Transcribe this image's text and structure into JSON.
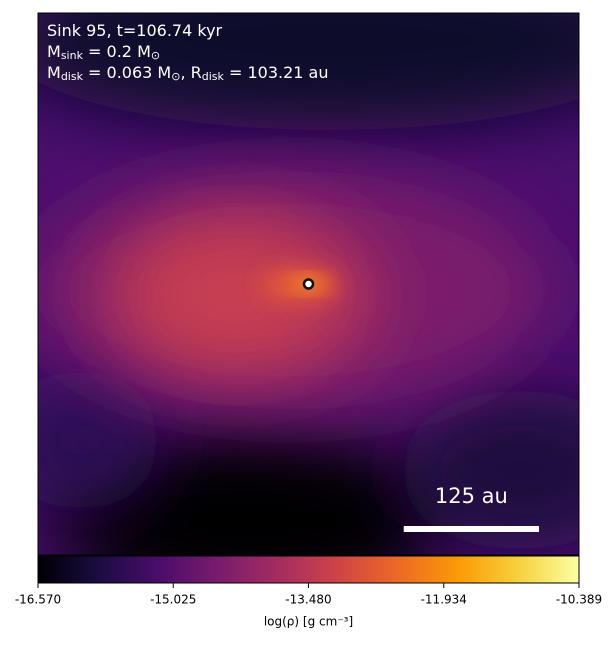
{
  "chart_data": {
    "type": "heatmap",
    "annotations": [
      [
        {
          "text": "Sink 95, t=106.74 kyr"
        }
      ],
      [
        {
          "text": "M"
        },
        {
          "text": "sink",
          "sub": true
        },
        {
          "text": " = 0.2 M"
        },
        {
          "text": "⊙",
          "sub": true
        }
      ],
      [
        {
          "text": "M"
        },
        {
          "text": "disk",
          "sub": true
        },
        {
          "text": " = 0.063 M"
        },
        {
          "text": "⊙",
          "sub": true
        },
        {
          "text": ", R"
        },
        {
          "text": "disk",
          "sub": true
        },
        {
          "text": " = 103.21 au"
        }
      ]
    ],
    "xlim": [
      -250,
      250
    ],
    "ylim": [
      -250,
      250
    ],
    "sink": {
      "x": 0,
      "y": 0
    },
    "scale_bar": {
      "label": "125 au",
      "length": 125
    },
    "colorbar": {
      "label": "log(ρ) [g cm⁻³]",
      "lim": [
        -16.57,
        -10.389
      ],
      "ticks": [
        {
          "value": -16.57,
          "label": "-16.570"
        },
        -15.025,
        {
          "value": -13.48,
          "label": "-13.480"
        },
        -11.934,
        -10.389
      ],
      "colors": [
        "#000004",
        "#1b0c41",
        "#4a0c6b",
        "#781c6d",
        "#a52c60",
        "#cf4446",
        "#ed6925",
        "#fb9b06",
        "#f7d13d",
        "#fcffa4"
      ]
    }
  }
}
